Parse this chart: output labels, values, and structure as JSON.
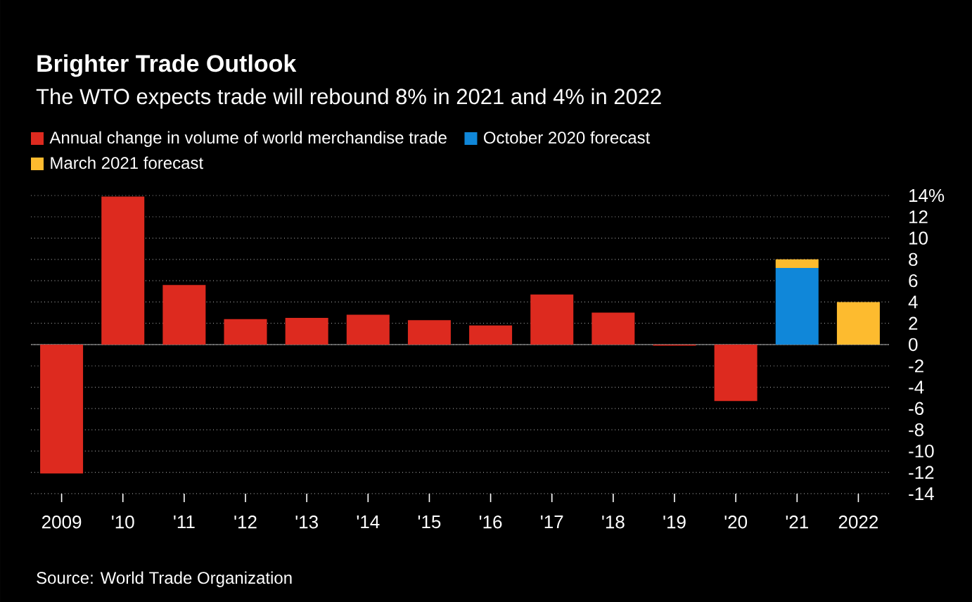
{
  "chart_data": {
    "type": "bar",
    "title": "Brighter Trade Outlook",
    "subtitle": "The WTO expects trade will rebound 8% in 2021 and 4% in 2022",
    "categories": [
      "2009",
      "'10",
      "'11",
      "'12",
      "'13",
      "'14",
      "'15",
      "'16",
      "'17",
      "'18",
      "'19",
      "'20",
      "'21",
      "2022"
    ],
    "series": [
      {
        "name": "Annual change in volume of world merchandise trade",
        "color": "#dd2a1f",
        "values": [
          -12.1,
          13.9,
          5.6,
          2.4,
          2.5,
          2.8,
          2.3,
          1.8,
          4.7,
          3.0,
          -0.1,
          -5.3,
          null,
          null
        ]
      },
      {
        "name": "October 2020 forecast",
        "color": "#1087d9",
        "values": [
          null,
          null,
          null,
          null,
          null,
          null,
          null,
          null,
          null,
          null,
          null,
          null,
          7.2,
          null
        ]
      },
      {
        "name": "March 2021 forecast",
        "color": "#fdbb2f",
        "values": [
          null,
          null,
          null,
          null,
          null,
          null,
          null,
          null,
          null,
          null,
          null,
          null,
          0.8,
          4.0
        ]
      }
    ],
    "stacked": true,
    "ylim": [
      -14,
      14
    ],
    "yticks": [
      -14,
      -12,
      -10,
      -8,
      -6,
      -4,
      -2,
      0,
      2,
      4,
      6,
      8,
      10,
      12,
      {
        "value": 14,
        "label": "14%"
      }
    ],
    "grid": "y",
    "legend": "top left",
    "annotations": [
      "Source: World Trade Organization"
    ]
  }
}
